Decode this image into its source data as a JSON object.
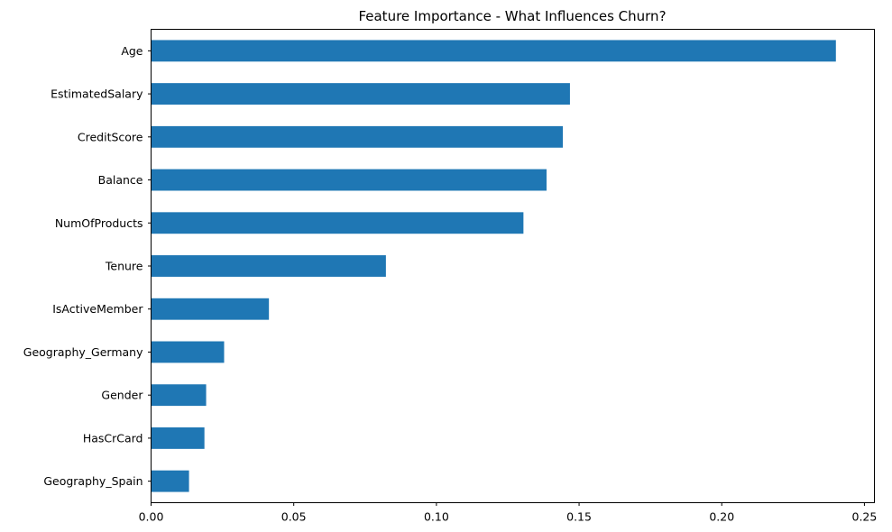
{
  "chart_data": {
    "type": "bar",
    "orientation": "horizontal",
    "title": "Feature Importance - What Influences Churn?",
    "xlabel": "",
    "ylabel": "",
    "categories": [
      "Age",
      "EstimatedSalary",
      "CreditScore",
      "Balance",
      "NumOfProducts",
      "Tenure",
      "IsActiveMember",
      "Geography_Germany",
      "Gender",
      "HasCrCard",
      "Geography_Spain"
    ],
    "values": [
      0.24,
      0.1468,
      0.1443,
      0.1386,
      0.1305,
      0.0823,
      0.0413,
      0.0256,
      0.0193,
      0.0187,
      0.0133
    ],
    "xlim": [
      0,
      0.2535
    ],
    "xticks": [
      0.0,
      0.05,
      0.1,
      0.15,
      0.2,
      0.25
    ],
    "xtick_labels": [
      "0.00",
      "0.05",
      "0.10",
      "0.15",
      "0.20",
      "0.25"
    ],
    "bar_color": "#1f77b4",
    "grid": false,
    "legend": "none"
  }
}
